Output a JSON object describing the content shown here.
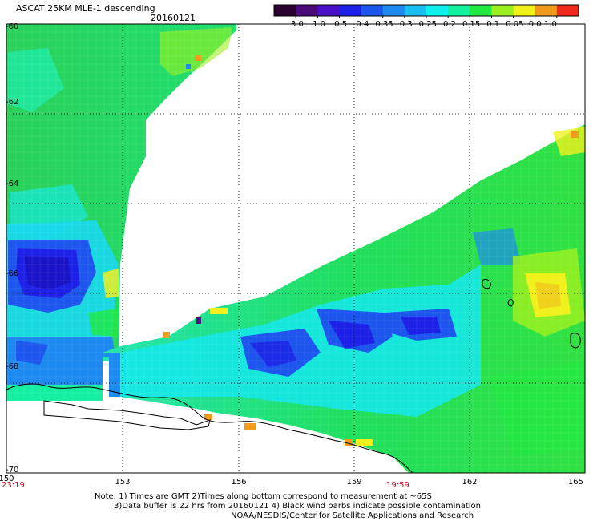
{
  "header": {
    "title": "ASCAT 25KM MLE-1 descending",
    "date": "20160121"
  },
  "colorbar": {
    "ticks": [
      "-3.0",
      "-1.0",
      "-0.5",
      "-0.4",
      "-0.35",
      "-0.3",
      "-0.25",
      "-0.2",
      "-0.15",
      "-0.1",
      "-0.05",
      "0.0",
      "1.0"
    ],
    "colors": [
      "#2a0030",
      "#4b0a7a",
      "#4a0fc8",
      "#1d20e6",
      "#1c56ee",
      "#1c8af0",
      "#18c0f2",
      "#0ff0ee",
      "#14f0a0",
      "#20ea40",
      "#9af01e",
      "#f0f01a",
      "#f09a1a",
      "#f02a1a"
    ]
  },
  "axes": {
    "lon_ticks": [
      "150",
      "153",
      "156",
      "159",
      "162",
      "165"
    ],
    "lat_ticks": [
      "-60",
      "-62",
      "-64",
      "-66",
      "-68",
      "-70"
    ]
  },
  "times": {
    "start": "23:19",
    "mid": "19:59"
  },
  "notes": {
    "line1": "Note: 1) Times are GMT 2)Times along bottom correspond to measurement at ~65S",
    "line2": "3)Data buffer is 22 hrs from 20160121 4) Black wind barbs indicate possible contamination",
    "line3": "NOAA/NESDIS/Center for Satellite Applications and Research"
  }
}
